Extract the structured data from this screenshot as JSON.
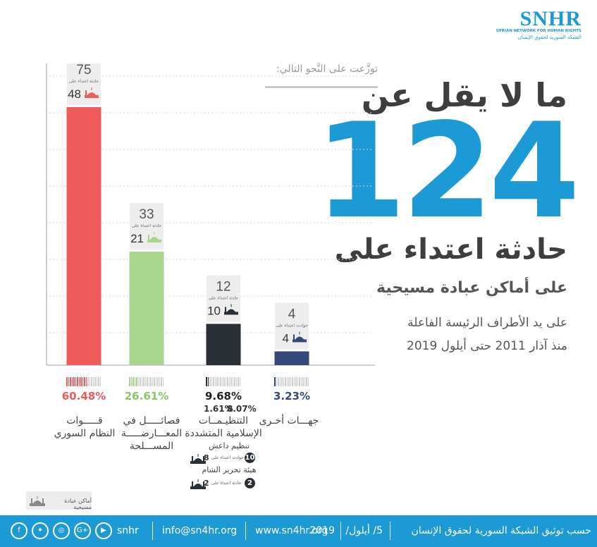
{
  "logo": {
    "name": "SNHR",
    "english_tagline": "SYRIAN NETWORK FOR HUMAN RIGHTS",
    "arabic_tagline": "الشبكة السورية لحقوق الإنسان"
  },
  "headline": {
    "line1": "ما لا يقل عن",
    "number": "124",
    "line3": "حادثة اعتداء على",
    "line4": "على أماكن عبادة مسيحية",
    "sub1": "على يد الأطراف الرئيسة الفاعلة",
    "sub2": "منذ آذار 2011 حتى أيلول 2019"
  },
  "distribution_label": "توزَّعت على النَّحو التالي:",
  "chart_data": {
    "type": "bar",
    "categories": [
      "قوات النظام السوري",
      "فصائل في المعارضة المسلحة",
      "التنظيمات الإسلامية المتشددة",
      "جهات أخرى"
    ],
    "values": [
      75,
      33,
      12,
      4
    ],
    "secondary_values": [
      48,
      21,
      10,
      4
    ],
    "secondary_captions": [
      "حادثة اعتداء على",
      "حادثة اعتداء على",
      "حادثة اعتداء على",
      "حوادث اعتداء على"
    ],
    "percentages": [
      "60.48%",
      "26.61%",
      "9.68%",
      "3.23%"
    ],
    "colors": [
      "#ef5b5b",
      "#a9d68c",
      "#2a2f36",
      "#34497a"
    ],
    "ylim": [
      0,
      80
    ],
    "grid": true
  },
  "category_labels": [
    {
      "line1": "قـــــوات",
      "line2": "النظام السوري",
      "line3": ""
    },
    {
      "line1": "فصائـــــل في",
      "line2": "المعـــارضـــــة",
      "line3": "المســـلحة"
    },
    {
      "line1": "التنظيـمــات",
      "line2": "الإسلامية المتشددة",
      "line3": ""
    },
    {
      "line1": "جهـــات أخـرى",
      "line2": "",
      "line3": ""
    }
  ],
  "extremist_breakdown": {
    "pct_left": "1.61%",
    "pct_right": "8.07%",
    "org1_name": "تنظيم داعش",
    "org1_count": "8",
    "org1_caption": "حوادث اعتداء على",
    "org1_badge": "10",
    "org2_name": "هيئة تحرير الشام",
    "org2_count": "2",
    "org2_caption": "حادثة اعتداء على",
    "org2_badge": "2"
  },
  "legend": {
    "label": "أماكن عبادة مسيحية"
  },
  "footer": {
    "source": "حسب توثيق الشبكة السورية لحقوق الإنسان",
    "date_part1": "5/ أيلول/",
    "date_part2": "2019",
    "website": "www.sn4hr.org",
    "email": "info@sn4hr.org",
    "handle": "snhr",
    "social_icons": [
      "youtube-icon",
      "google-plus-icon",
      "instagram-icon",
      "twitter-icon",
      "facebook-icon"
    ]
  }
}
